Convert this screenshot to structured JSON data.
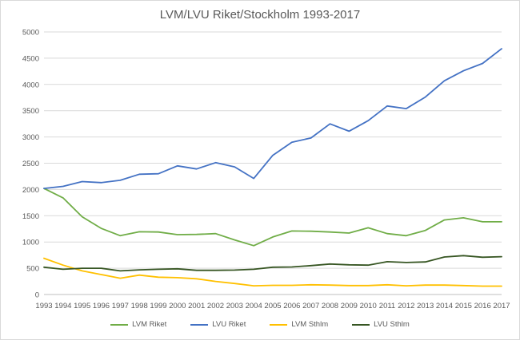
{
  "chart_data": {
    "type": "line",
    "title": "LVM/LVU Riket/Stockholm 1993-2017",
    "xlabel": "",
    "ylabel": "",
    "ylim": [
      0,
      5000
    ],
    "yticks": [
      "0",
      "500",
      "1000",
      "1500",
      "2000",
      "2500",
      "3000",
      "3500",
      "4000",
      "4500",
      "5000"
    ],
    "grid": true,
    "legend_position": "bottom",
    "categories": [
      "1993",
      "1994",
      "1995",
      "1996",
      "1997",
      "1998",
      "1999",
      "2000",
      "2001",
      "2002",
      "2003",
      "2004",
      "2005",
      "2006",
      "2007",
      "2008",
      "2009",
      "2010",
      "2011",
      "2012",
      "2013",
      "2014",
      "2015",
      "2016",
      "2017"
    ],
    "series": [
      {
        "name": "LVM Riket",
        "color": "#70ad47",
        "values": [
          2020,
          1840,
          1480,
          1260,
          1120,
          1195,
          1190,
          1140,
          1145,
          1160,
          1040,
          930,
          1095,
          1210,
          1205,
          1190,
          1170,
          1270,
          1160,
          1120,
          1220,
          1420,
          1460,
          1385,
          1385
        ]
      },
      {
        "name": "LVU Riket",
        "color": "#4472c4",
        "values": [
          2020,
          2060,
          2150,
          2130,
          2175,
          2290,
          2300,
          2450,
          2390,
          2510,
          2430,
          2210,
          2650,
          2900,
          2980,
          3250,
          3110,
          3310,
          3590,
          3540,
          3760,
          4070,
          4260,
          4400,
          4680
        ]
      },
      {
        "name": "LVM Sthlm",
        "color": "#ffc000",
        "values": [
          690,
          560,
          450,
          380,
          310,
          370,
          330,
          320,
          300,
          250,
          210,
          165,
          175,
          175,
          185,
          180,
          170,
          170,
          185,
          165,
          180,
          180,
          170,
          160,
          160
        ]
      },
      {
        "name": "LVU Sthlm",
        "color": "#375623",
        "values": [
          520,
          480,
          500,
          500,
          450,
          470,
          480,
          490,
          460,
          460,
          465,
          480,
          520,
          525,
          550,
          580,
          565,
          560,
          625,
          610,
          620,
          715,
          740,
          710,
          720
        ]
      }
    ]
  }
}
